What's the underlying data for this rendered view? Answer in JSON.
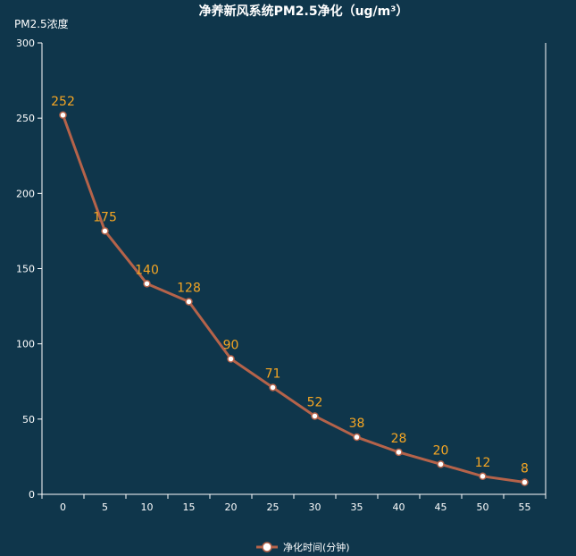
{
  "chart_data": {
    "type": "line",
    "title": "净养新风系统PM2.5净化（ug/m³）",
    "ylabel": "PM2.5浓度",
    "xlabel": "",
    "x": [
      0,
      5,
      10,
      15,
      20,
      25,
      30,
      35,
      40,
      45,
      50,
      55
    ],
    "series": [
      {
        "name": "净化时间(分钟)",
        "values": [
          252,
          175,
          140,
          128,
          90,
          71,
          52,
          38,
          28,
          20,
          12,
          8
        ]
      }
    ],
    "ylim": [
      0,
      300
    ],
    "yticks": [
      0,
      50,
      100,
      150,
      200,
      250,
      300
    ],
    "grid": false,
    "legend": "bottom-center",
    "colors": {
      "background": "#0f364b",
      "line": "#b5634a",
      "label": "#f5a623",
      "axis": "#ffffff"
    }
  }
}
